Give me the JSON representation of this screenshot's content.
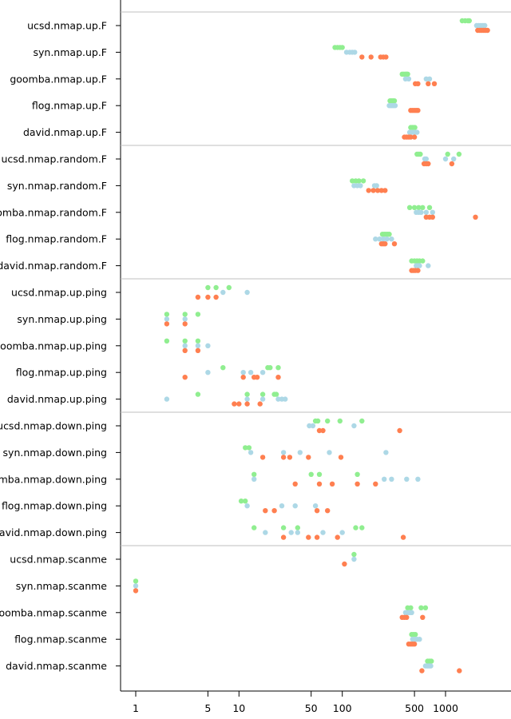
{
  "chart_data": {
    "type": "scatter",
    "title": "",
    "xlabel": "",
    "ylabel": "",
    "x_scale": "log",
    "xlim": [
      0.85,
      3200
    ],
    "x_ticks": [
      1,
      5,
      10,
      50,
      100,
      500,
      1000
    ],
    "x_tick_labels": [
      "1",
      "5",
      "10",
      "50",
      "100",
      "500",
      "1000"
    ],
    "grid": false,
    "legend": "none",
    "colors": [
      "#90EE90",
      "#ADD8E6",
      "#FF7F50"
    ],
    "panels": [
      {
        "rows": [
          {
            "label": "ucsd.nmap.up.F",
            "series": [
              [
                1450,
                1550,
                1650,
                1700
              ],
              [
                2000,
                2100,
                2200,
                2300,
                2400
              ],
              [
                2050,
                2150,
                2250,
                2350,
                2450,
                2550
              ]
            ]
          },
          {
            "label": "syn.nmap.up.F",
            "series": [
              [
                85,
                90,
                95,
                100
              ],
              [
                110,
                118,
                125,
                132
              ],
              [
                155,
                190,
                235,
                250,
                265
              ]
            ]
          },
          {
            "label": "goomba.nmap.up.F",
            "series": [
              [
                380,
                395,
                410,
                420,
                430
              ],
              [
                410,
                440,
                650,
                700
              ],
              [
                510,
                540,
                680,
                780
              ]
            ]
          },
          {
            "label": "flog.nmap.up.F",
            "series": [
              [
                290,
                300,
                310,
                320
              ],
              [
                285,
                295,
                305,
                315,
                325
              ],
              [
                460,
                480,
                500,
                520,
                540
              ]
            ]
          },
          {
            "label": "david.nmap.up.F",
            "series": [
              [
                460,
                475,
                490,
                505
              ],
              [
                450,
                480,
                510,
                530
              ],
              [
                400,
                420,
                440,
                460,
                500
              ]
            ]
          }
        ]
      },
      {
        "rows": [
          {
            "label": "ucsd.nmap.random.F",
            "series": [
              [
                530,
                550,
                570,
                1050,
                1350
              ],
              [
                630,
                650,
                1000,
                1200
              ],
              [
                620,
                650,
                680,
                1150
              ]
            ]
          },
          {
            "label": "syn.nmap.random.F",
            "series": [
              [
                125,
                135,
                145,
                160
              ],
              [
                130,
                140,
                150,
                205,
                215
              ],
              [
                180,
                200,
                220,
                240,
                260
              ]
            ]
          },
          {
            "label": "goomba.nmap.random.F",
            "series": [
              [
                450,
                500,
                550,
                600,
                700
              ],
              [
                520,
                550,
                580,
                650,
                750
              ],
              [
                650,
                700,
                750,
                1950
              ]
            ]
          },
          {
            "label": "flog.nmap.random.F",
            "series": [
              [
                245,
                255,
                265,
                275,
                285
              ],
              [
                210,
                230,
                250,
                270,
                300
              ],
              [
                240,
                250,
                260,
                320
              ]
            ]
          },
          {
            "label": "david.nmap.random.F",
            "series": [
              [
                470,
                500,
                530,
                560,
                600
              ],
              [
                520,
                540,
                560,
                680
              ],
              [
                470,
                490,
                510,
                540
              ]
            ]
          }
        ]
      },
      {
        "rows": [
          {
            "label": "ucsd.nmap.up.ping",
            "series": [
              [
                5,
                6,
                8
              ],
              [
                7,
                12
              ],
              [
                4,
                5,
                6
              ]
            ]
          },
          {
            "label": "syn.nmap.up.ping",
            "series": [
              [
                2,
                3,
                4
              ],
              [
                2,
                3
              ],
              [
                2,
                3
              ]
            ]
          },
          {
            "label": "goomba.nmap.up.ping",
            "series": [
              [
                2,
                3,
                4
              ],
              [
                3,
                4,
                5
              ],
              [
                3,
                4
              ]
            ]
          },
          {
            "label": "flog.nmap.up.ping",
            "series": [
              [
                7,
                19,
                20,
                24
              ],
              [
                5,
                11,
                13,
                17
              ],
              [
                3,
                11,
                14,
                15,
                24
              ]
            ]
          },
          {
            "label": "david.nmap.up.ping",
            "series": [
              [
                4,
                12,
                17,
                22,
                23
              ],
              [
                2,
                12,
                17,
                24,
                26,
                28
              ],
              [
                9,
                10,
                12,
                16
              ]
            ]
          }
        ]
      },
      {
        "rows": [
          {
            "label": "ucsd.nmap.down.ping",
            "series": [
              [
                55,
                58,
                72,
                95,
                155
              ],
              [
                48,
                52,
                130
              ],
              [
                60,
                65,
                360
              ]
            ]
          },
          {
            "label": "syn.nmap.down.ping",
            "series": [
              [
                11.5,
                12.5
              ],
              [
                13,
                27,
                39,
                75,
                265
              ],
              [
                17,
                27,
                31,
                47,
                97
              ]
            ]
          },
          {
            "label": "goomba.nmap.down.ping",
            "series": [
              [
                14,
                50,
                60,
                140
              ],
              [
                14,
                255,
                300,
                420,
                540
              ],
              [
                35,
                60,
                80,
                140,
                210
              ]
            ]
          },
          {
            "label": "flog.nmap.down.ping",
            "series": [
              [
                10.5,
                11.5
              ],
              [
                12,
                26,
                35,
                55
              ],
              [
                18,
                22,
                57,
                72
              ]
            ]
          },
          {
            "label": "david.nmap.down.ping",
            "series": [
              [
                14,
                27,
                37,
                135,
                155
              ],
              [
                18,
                32,
                37,
                65,
                100
              ],
              [
                27,
                47,
                57,
                90,
                390
              ]
            ]
          }
        ]
      },
      {
        "rows": [
          {
            "label": "ucsd.nmap.scanme",
            "series": [
              [
                130
              ],
              [
                130
              ],
              [
                105
              ]
            ]
          },
          {
            "label": "syn.nmap.scanme",
            "series": [
              [
                1
              ],
              [
                1
              ],
              [
                1
              ]
            ]
          },
          {
            "label": "goomba.nmap.scanme",
            "series": [
              [
                430,
                460,
                580,
                640
              ],
              [
                410,
                430,
                450,
                470
              ],
              [
                380,
                400,
                420,
                600
              ]
            ]
          },
          {
            "label": "flog.nmap.scanme",
            "series": [
              [
                470,
                490,
                510
              ],
              [
                480,
                510,
                530,
                560
              ],
              [
                440,
                460,
                480,
                500
              ]
            ]
          },
          {
            "label": "david.nmap.scanme",
            "series": [
              [
                670,
                690,
                710,
                730
              ],
              [
                640,
                660,
                680,
                700,
                720
              ],
              [
                590,
                1360
              ]
            ]
          }
        ]
      }
    ]
  }
}
